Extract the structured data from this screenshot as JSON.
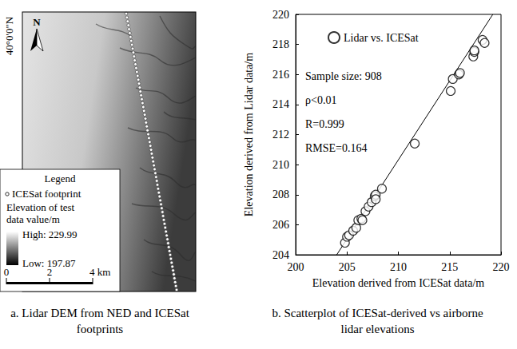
{
  "map_panel": {
    "caption": "a. Lidar DEM from NED and ICESat footprints",
    "latitude_label": "40°0'0\"N",
    "north_label": "N",
    "legend": {
      "title": "Legend",
      "footprint_label": "ICESat footprint",
      "elevation_title": "Elevation of test data value/m",
      "high": {
        "value": 229.99,
        "label": "High: 229.99"
      },
      "low": {
        "value": 197.87,
        "label": "Low: 197.87"
      }
    },
    "scale_bar": {
      "ticks": [
        0,
        2,
        {
          "value": 4,
          "label": "4 km"
        }
      ]
    }
  },
  "chart_data": {
    "type": "scatter",
    "caption": "b. Scatterplot of ICESat-derived vs airborne lidar elevations",
    "x_label": "Elevation derived from ICESat data/m",
    "y_label": "Elevation derived from Lidar data/m",
    "xlim": [
      200,
      220
    ],
    "xticks": [
      200,
      205,
      210,
      215,
      220
    ],
    "ylim": [
      204,
      220
    ],
    "yticks": [
      204,
      206,
      208,
      210,
      212,
      214,
      216,
      218,
      220
    ],
    "grid": false,
    "legend": "upper left",
    "series": [
      {
        "name": "Lidar vs. ICESat",
        "color": "#000000",
        "marker": "circle",
        "x": [
          204.8,
          205.0,
          205.2,
          205.6,
          205.9,
          206.1,
          206.4,
          206.5,
          206.8,
          207.1,
          207.4,
          207.7,
          207.8,
          207.8,
          208.4,
          211.6,
          215.1,
          215.3,
          215.9,
          216.0,
          217.3,
          217.4,
          217.4,
          218.2,
          218.4
        ],
        "y": [
          204.8,
          205.2,
          205.3,
          205.6,
          205.8,
          206.3,
          206.4,
          206.3,
          206.9,
          207.2,
          207.5,
          207.9,
          208.0,
          207.7,
          208.4,
          211.4,
          214.9,
          215.7,
          216.0,
          216.1,
          217.2,
          217.5,
          217.6,
          218.3,
          218.1
        ]
      }
    ],
    "fit_line": {
      "x": [
        204.0,
        219.2
      ],
      "y": [
        204,
        220
      ]
    },
    "annotations": [
      "Sample size: 908",
      "ρ<0.01",
      "R=0.999",
      "RMSE=0.164"
    ]
  }
}
